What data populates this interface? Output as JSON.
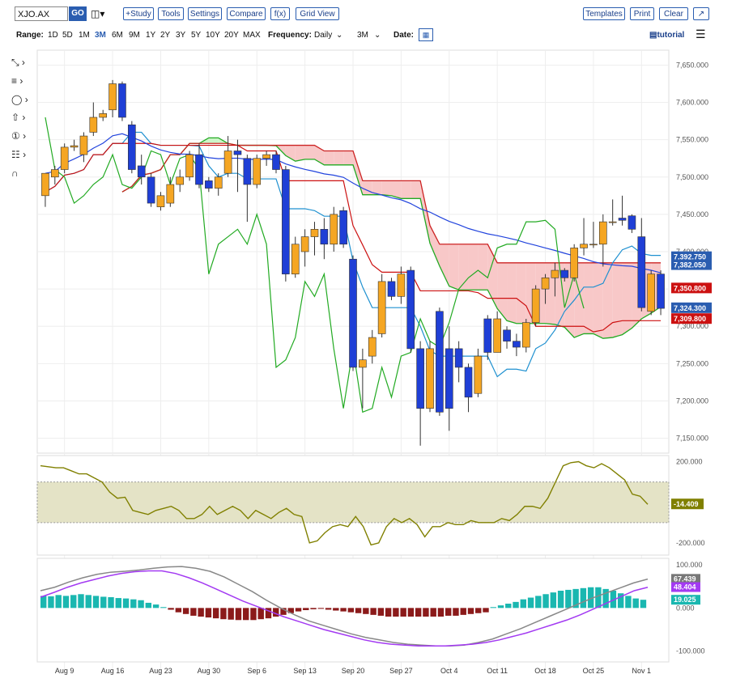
{
  "toolbar": {
    "symbol": "XJO.AX",
    "go": "GO",
    "buttons": [
      "+Study",
      "Tools",
      "Settings",
      "Compare",
      "f(x)",
      "Grid View"
    ],
    "right_buttons": [
      "Templates",
      "Print",
      "Clear"
    ]
  },
  "rangebar": {
    "range_label": "Range:",
    "ranges": [
      "1D",
      "5D",
      "1M",
      "3M",
      "6M",
      "9M",
      "1Y",
      "2Y",
      "3Y",
      "5Y",
      "10Y",
      "20Y",
      "MAX"
    ],
    "active_range": "3M",
    "frequency_label": "Frequency:",
    "frequency_value": "Daily",
    "period_value": "3M",
    "date_label": "Date:",
    "tutorial": "tutorial"
  },
  "colors": {
    "up": "#f5a623",
    "down": "#1f3fd6",
    "accent": "#2a5db0",
    "cloud_green": "#ccf5c8",
    "cloud_red": "#f8c8c8",
    "cci_band": "#e4e3c6",
    "cci_line": "#808000",
    "macd_line": "#888888",
    "signal_line": "#a33af2",
    "hist_pos": "#1ab7b0",
    "hist_neg": "#8b1a1a"
  },
  "chart_data": [
    {
      "type": "candlestick",
      "title": "",
      "x_ticks": [
        "Aug 9",
        "Aug 16",
        "Aug 23",
        "Aug 30",
        "Sep 6",
        "Sep 13",
        "Sep 20",
        "Sep 27",
        "Oct 4",
        "Oct 11",
        "Oct 18",
        "Oct 25",
        "Nov 1"
      ],
      "y_ticks": [
        "7,150.000",
        "7,200.000",
        "7,250.000",
        "7,300.000",
        "7,350.000",
        "7,400.000",
        "7,450.000",
        "7,500.000",
        "7,550.000",
        "7,600.000",
        "7,650.000"
      ],
      "ylim": [
        7130,
        7670
      ],
      "price_labels": [
        "7,392.750",
        "7,382.050",
        "7,350.800",
        "7,324.300",
        "7,309.800"
      ],
      "candles": [
        {
          "date": "Aug 5",
          "o": 7475,
          "h": 7500,
          "l": 7460,
          "c": 7505
        },
        {
          "date": "Aug 6",
          "o": 7500,
          "h": 7515,
          "l": 7490,
          "c": 7510
        },
        {
          "date": "Aug 9",
          "o": 7510,
          "h": 7545,
          "l": 7505,
          "c": 7540
        },
        {
          "date": "Aug 10",
          "o": 7540,
          "h": 7550,
          "l": 7535,
          "c": 7542
        },
        {
          "date": "Aug 11",
          "o": 7530,
          "h": 7560,
          "l": 7520,
          "c": 7555
        },
        {
          "date": "Aug 12",
          "o": 7560,
          "h": 7600,
          "l": 7555,
          "c": 7580
        },
        {
          "date": "Aug 13",
          "o": 7580,
          "h": 7590,
          "l": 7575,
          "c": 7585
        },
        {
          "date": "Aug 16",
          "o": 7590,
          "h": 7630,
          "l": 7580,
          "c": 7625
        },
        {
          "date": "Aug 17",
          "o": 7625,
          "h": 7628,
          "l": 7575,
          "c": 7580
        },
        {
          "date": "Aug 18",
          "o": 7570,
          "h": 7575,
          "l": 7505,
          "c": 7510
        },
        {
          "date": "Aug 19",
          "o": 7515,
          "h": 7530,
          "l": 7490,
          "c": 7500
        },
        {
          "date": "Aug 20",
          "o": 7500,
          "h": 7505,
          "l": 7460,
          "c": 7465
        },
        {
          "date": "Aug 23",
          "o": 7460,
          "h": 7480,
          "l": 7455,
          "c": 7475
        },
        {
          "date": "Aug 24",
          "o": 7465,
          "h": 7500,
          "l": 7460,
          "c": 7490
        },
        {
          "date": "Aug 25",
          "o": 7490,
          "h": 7510,
          "l": 7480,
          "c": 7500
        },
        {
          "date": "Aug 26",
          "o": 7500,
          "h": 7535,
          "l": 7495,
          "c": 7530
        },
        {
          "date": "Aug 27",
          "o": 7530,
          "h": 7545,
          "l": 7485,
          "c": 7490
        },
        {
          "date": "Aug 30",
          "o": 7495,
          "h": 7500,
          "l": 7480,
          "c": 7485
        },
        {
          "date": "Aug 31",
          "o": 7485,
          "h": 7505,
          "l": 7475,
          "c": 7500
        },
        {
          "date": "Sep 1",
          "o": 7505,
          "h": 7555,
          "l": 7500,
          "c": 7535
        },
        {
          "date": "Sep 2",
          "o": 7535,
          "h": 7550,
          "l": 7480,
          "c": 7530
        },
        {
          "date": "Sep 3",
          "o": 7525,
          "h": 7530,
          "l": 7440,
          "c": 7490
        },
        {
          "date": "Sep 6",
          "o": 7490,
          "h": 7530,
          "l": 7485,
          "c": 7525
        },
        {
          "date": "Sep 7",
          "o": 7525,
          "h": 7535,
          "l": 7515,
          "c": 7530
        },
        {
          "date": "Sep 8",
          "o": 7530,
          "h": 7535,
          "l": 7505,
          "c": 7510
        },
        {
          "date": "Sep 9",
          "o": 7510,
          "h": 7515,
          "l": 7360,
          "c": 7370
        },
        {
          "date": "Sep 10",
          "o": 7370,
          "h": 7420,
          "l": 7365,
          "c": 7410
        },
        {
          "date": "Sep 13",
          "o": 7400,
          "h": 7430,
          "l": 7380,
          "c": 7420
        },
        {
          "date": "Sep 14",
          "o": 7420,
          "h": 7440,
          "l": 7395,
          "c": 7430
        },
        {
          "date": "Sep 15",
          "o": 7430,
          "h": 7445,
          "l": 7390,
          "c": 7410
        },
        {
          "date": "Sep 16",
          "o": 7410,
          "h": 7460,
          "l": 7400,
          "c": 7450
        },
        {
          "date": "Sep 17",
          "o": 7455,
          "h": 7460,
          "l": 7405,
          "c": 7410
        },
        {
          "date": "Sep 20",
          "o": 7390,
          "h": 7395,
          "l": 7240,
          "c": 7245
        },
        {
          "date": "Sep 21",
          "o": 7245,
          "h": 7270,
          "l": 7190,
          "c": 7255
        },
        {
          "date": "Sep 22",
          "o": 7260,
          "h": 7295,
          "l": 7250,
          "c": 7285
        },
        {
          "date": "Sep 23",
          "o": 7290,
          "h": 7370,
          "l": 7285,
          "c": 7360
        },
        {
          "date": "Sep 24",
          "o": 7360,
          "h": 7365,
          "l": 7335,
          "c": 7340
        },
        {
          "date": "Sep 27",
          "o": 7340,
          "h": 7380,
          "l": 7330,
          "c": 7370
        },
        {
          "date": "Sep 28",
          "o": 7375,
          "h": 7380,
          "l": 7265,
          "c": 7270
        },
        {
          "date": "Sep 29",
          "o": 7270,
          "h": 7280,
          "l": 7140,
          "c": 7190
        },
        {
          "date": "Sep 30",
          "o": 7190,
          "h": 7280,
          "l": 7185,
          "c": 7270
        },
        {
          "date": "Oct 1",
          "o": 7320,
          "h": 7325,
          "l": 7180,
          "c": 7185
        },
        {
          "date": "Oct 4",
          "o": 7270,
          "h": 7300,
          "l": 7160,
          "c": 7190
        },
        {
          "date": "Oct 5",
          "o": 7270,
          "h": 7280,
          "l": 7225,
          "c": 7245
        },
        {
          "date": "Oct 6",
          "o": 7245,
          "h": 7250,
          "l": 7185,
          "c": 7205
        },
        {
          "date": "Oct 7",
          "o": 7210,
          "h": 7270,
          "l": 7205,
          "c": 7260
        },
        {
          "date": "Oct 8",
          "o": 7310,
          "h": 7315,
          "l": 7255,
          "c": 7265
        },
        {
          "date": "Oct 11",
          "o": 7265,
          "h": 7320,
          "l": 7265,
          "c": 7310
        },
        {
          "date": "Oct 12",
          "o": 7295,
          "h": 7300,
          "l": 7270,
          "c": 7280
        },
        {
          "date": "Oct 13",
          "o": 7280,
          "h": 7290,
          "l": 7260,
          "c": 7272
        },
        {
          "date": "Oct 14",
          "o": 7272,
          "h": 7310,
          "l": 7265,
          "c": 7305
        },
        {
          "date": "Oct 15",
          "o": 7305,
          "h": 7355,
          "l": 7300,
          "c": 7350
        },
        {
          "date": "Oct 18",
          "o": 7350,
          "h": 7370,
          "l": 7330,
          "c": 7365
        },
        {
          "date": "Oct 19",
          "o": 7365,
          "h": 7385,
          "l": 7340,
          "c": 7375
        },
        {
          "date": "Oct 20",
          "o": 7375,
          "h": 7378,
          "l": 7360,
          "c": 7365
        },
        {
          "date": "Oct 21",
          "o": 7365,
          "h": 7410,
          "l": 7360,
          "c": 7405
        },
        {
          "date": "Oct 22",
          "o": 7405,
          "h": 7445,
          "l": 7395,
          "c": 7410
        },
        {
          "date": "Oct 25",
          "o": 7410,
          "h": 7440,
          "l": 7405,
          "c": 7410
        },
        {
          "date": "Oct 26",
          "o": 7410,
          "h": 7450,
          "l": 7380,
          "c": 7440
        },
        {
          "date": "Oct 27",
          "o": 7440,
          "h": 7470,
          "l": 7435,
          "c": 7440
        },
        {
          "date": "Oct 28",
          "o": 7445,
          "h": 7475,
          "l": 7435,
          "c": 7442
        },
        {
          "date": "Oct 29",
          "o": 7448,
          "h": 7450,
          "l": 7425,
          "c": 7430
        },
        {
          "date": "Nov 1",
          "o": 7420,
          "h": 7445,
          "l": 7320,
          "c": 7325
        },
        {
          "date": "Nov 2",
          "o": 7320,
          "h": 7375,
          "l": 7315,
          "c": 7370
        },
        {
          "date": "Nov 3",
          "o": 7370,
          "h": 7375,
          "l": 7315,
          "c": 7324
        }
      ]
    },
    {
      "type": "line",
      "title": "",
      "y_ticks": [
        "200.000",
        "-200.000"
      ],
      "ylim": [
        -260,
        230
      ],
      "last_label": "-14.409",
      "series": [
        {
          "values": [
            180,
            175,
            170,
            170,
            155,
            140,
            140,
            120,
            100,
            50,
            20,
            25,
            -40,
            -50,
            -60,
            -40,
            -30,
            -20,
            -40,
            -80,
            -80,
            -60,
            -20,
            -60,
            -40,
            -20,
            -40,
            -80,
            -40,
            -60,
            -80,
            -50,
            -30,
            -60,
            -70,
            -200,
            -190,
            -150,
            -120,
            -110,
            -120,
            -70,
            -120,
            -210,
            -200,
            -120,
            -80,
            -100,
            -80,
            -110,
            -170,
            -120,
            -120,
            -100,
            -110,
            -110,
            -90,
            -100,
            -100,
            -100,
            -80,
            -90,
            -60,
            -20,
            -20,
            -30,
            20,
            100,
            180,
            195,
            200,
            180,
            170,
            190,
            170,
            140,
            110,
            40,
            30,
            -10
          ]
        }
      ]
    },
    {
      "type": "bar",
      "title": "",
      "y_ticks": [
        "100.000",
        "0.000",
        "-100.000"
      ],
      "ylim": [
        -125,
        115
      ],
      "right_labels": [
        "67.439",
        "48.404",
        "19.025"
      ],
      "histogram": [
        28,
        27,
        30,
        28,
        30,
        32,
        30,
        28,
        26,
        25,
        23,
        22,
        20,
        18,
        12,
        8,
        2,
        -4,
        -10,
        -14,
        -18,
        -20,
        -22,
        -24,
        -26,
        -27,
        -28,
        -28,
        -28,
        -26,
        -24,
        -20,
        -16,
        -12,
        -8,
        -5,
        -3,
        -2,
        -4,
        -6,
        -8,
        -10,
        -12,
        -14,
        -16,
        -18,
        -20,
        -20,
        -20,
        -20,
        -20,
        -20,
        -20,
        -20,
        -18,
        -18,
        -16,
        -14,
        -12,
        -10,
        2,
        6,
        10,
        14,
        20,
        24,
        28,
        32,
        36,
        40,
        42,
        44,
        46,
        48,
        48,
        44,
        40,
        34,
        28,
        22,
        19
      ],
      "series": [
        {
          "values": [
            40,
            48,
            60,
            70,
            78,
            83,
            85,
            88,
            92,
            95,
            96,
            92,
            85,
            72,
            55,
            38,
            18,
            0,
            -16,
            -30,
            -40,
            -50,
            -60,
            -68,
            -74,
            -80,
            -84,
            -86,
            -88,
            -88,
            -86,
            -80,
            -72,
            -60,
            -48,
            -34,
            -20,
            -6,
            8,
            22,
            34,
            46,
            58,
            67
          ]
        },
        {
          "values": [
            25,
            36,
            48,
            58,
            66,
            74,
            80,
            84,
            86,
            86,
            80,
            70,
            58,
            44,
            30,
            16,
            4,
            -8,
            -20,
            -30,
            -40,
            -50,
            -58,
            -66,
            -74,
            -80,
            -84,
            -86,
            -88,
            -88,
            -88,
            -86,
            -84,
            -80,
            -74,
            -66,
            -58,
            -48,
            -38,
            -28,
            -16,
            -2,
            12,
            26,
            40,
            48
          ]
        }
      ]
    }
  ]
}
